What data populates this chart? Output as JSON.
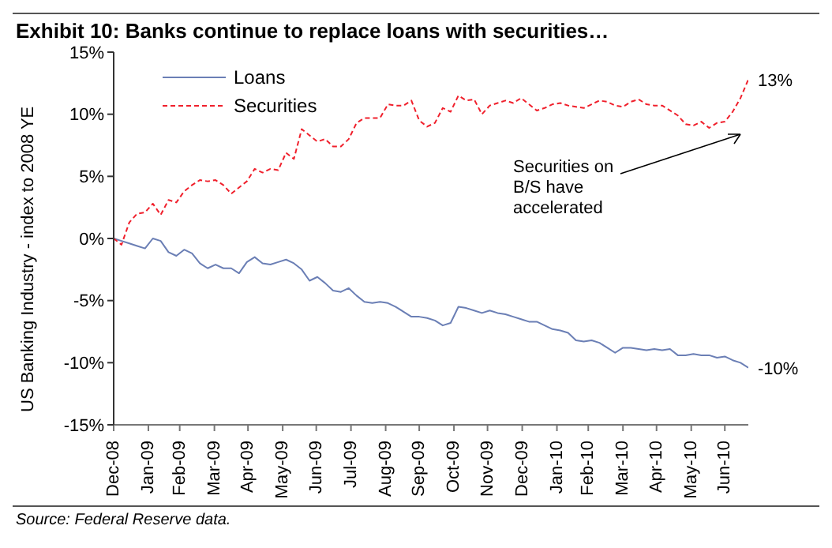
{
  "chart_data": {
    "type": "line",
    "title": "Exhibit 10: Banks continue to replace loans with securities…",
    "ylabel": "US Banking Industry - index to 2008 YE",
    "x": [
      "2008-12-31",
      "2009-01-07",
      "2009-01-14",
      "2009-01-21",
      "2009-01-28",
      "2009-02-04",
      "2009-02-11",
      "2009-02-18",
      "2009-02-25",
      "2009-03-04",
      "2009-03-11",
      "2009-03-18",
      "2009-03-25",
      "2009-04-01",
      "2009-04-08",
      "2009-04-15",
      "2009-04-22",
      "2009-04-29",
      "2009-05-06",
      "2009-05-13",
      "2009-05-20",
      "2009-05-27",
      "2009-06-03",
      "2009-06-10",
      "2009-06-17",
      "2009-06-24",
      "2009-07-01",
      "2009-07-08",
      "2009-07-15",
      "2009-07-22",
      "2009-07-29",
      "2009-08-05",
      "2009-08-12",
      "2009-08-19",
      "2009-08-26",
      "2009-09-02",
      "2009-09-09",
      "2009-09-16",
      "2009-09-23",
      "2009-09-30",
      "2009-10-07",
      "2009-10-14",
      "2009-10-21",
      "2009-10-28",
      "2009-11-04",
      "2009-11-11",
      "2009-11-18",
      "2009-11-25",
      "2009-12-02",
      "2009-12-09",
      "2009-12-16",
      "2009-12-23",
      "2009-12-30",
      "2010-01-06",
      "2010-01-13",
      "2010-01-20",
      "2010-01-27",
      "2010-02-03",
      "2010-02-10",
      "2010-02-17",
      "2010-02-24",
      "2010-03-03",
      "2010-03-10",
      "2010-03-17",
      "2010-03-24",
      "2010-03-31",
      "2010-04-07",
      "2010-04-14",
      "2010-04-21",
      "2010-04-28",
      "2010-05-05",
      "2010-05-12",
      "2010-05-19",
      "2010-05-26",
      "2010-06-02",
      "2010-06-09",
      "2010-06-16",
      "2010-06-23",
      "2010-06-30",
      "2010-07-07",
      "2010-07-14",
      "2010-07-21"
    ],
    "series": [
      {
        "name": "Loans",
        "color": "#6b7fb5",
        "line_style": "solid",
        "values": [
          0,
          -0.2,
          -0.4,
          -0.6,
          -0.8,
          0,
          -0.2,
          -1.1,
          -1.4,
          -0.9,
          -1.2,
          -2.0,
          -2.4,
          -2.1,
          -2.4,
          -2.4,
          -2.8,
          -1.9,
          -1.5,
          -2.0,
          -2.1,
          -1.9,
          -1.7,
          -2.0,
          -2.5,
          -3.4,
          -3.1,
          -3.6,
          -4.2,
          -4.3,
          -4.0,
          -4.6,
          -5.1,
          -5.2,
          -5.1,
          -5.2,
          -5.5,
          -5.9,
          -6.3,
          -6.3,
          -6.4,
          -6.6,
          -7.0,
          -6.8,
          -5.5,
          -5.6,
          -5.8,
          -6.0,
          -5.8,
          -6.0,
          -6.1,
          -6.3,
          -6.5,
          -6.7,
          -6.7,
          -7.0,
          -7.3,
          -7.4,
          -7.6,
          -8.2,
          -8.3,
          -8.2,
          -8.4,
          -8.8,
          -9.2,
          -8.8,
          -8.8,
          -8.9,
          -9.0,
          -8.9,
          -9.0,
          -8.9,
          -9.4,
          -9.4,
          -9.3,
          -9.4,
          -9.4,
          -9.6,
          -9.5,
          -9.8,
          -10.0,
          -10.4
        ]
      },
      {
        "name": "Securities",
        "color": "#f0202c",
        "line_style": "dashed",
        "values": [
          0,
          -0.5,
          1.3,
          2.0,
          2.1,
          2.8,
          1.9,
          3.1,
          2.9,
          3.8,
          4.3,
          4.7,
          4.6,
          4.7,
          4.3,
          3.6,
          4.1,
          4.6,
          5.6,
          5.3,
          5.6,
          5.5,
          6.9,
          6.4,
          8.8,
          8.3,
          7.8,
          8.0,
          7.4,
          7.4,
          8.0,
          9.3,
          9.7,
          9.7,
          9.7,
          10.8,
          10.7,
          10.7,
          11.1,
          9.5,
          9.0,
          9.3,
          10.5,
          10.2,
          11.5,
          11.1,
          11.2,
          10.0,
          10.7,
          10.9,
          11.1,
          10.9,
          11.3,
          10.8,
          10.3,
          10.5,
          10.8,
          10.9,
          10.7,
          10.6,
          10.5,
          10.8,
          11.1,
          11.0,
          10.7,
          10.6,
          11.0,
          11.2,
          10.8,
          10.7,
          10.7,
          10.3,
          9.9,
          9.2,
          9.1,
          9.4,
          8.9,
          9.3,
          9.4,
          10.2,
          11.3,
          12.8
        ]
      }
    ],
    "xlim": [
      "2008-12-31",
      "2010-07-21"
    ],
    "xticks": [
      {
        "value": "2008-12-31",
        "label": "Dec-08"
      },
      {
        "value": "2009-01-31",
        "label": "Jan-09"
      },
      {
        "value": "2009-02-28",
        "label": "Feb-09"
      },
      {
        "value": "2009-03-31",
        "label": "Mar-09"
      },
      {
        "value": "2009-04-30",
        "label": "Apr-09"
      },
      {
        "value": "2009-05-31",
        "label": "May-09"
      },
      {
        "value": "2009-06-30",
        "label": "Jun-09"
      },
      {
        "value": "2009-07-31",
        "label": "Jul-09"
      },
      {
        "value": "2009-08-31",
        "label": "Aug-09"
      },
      {
        "value": "2009-09-30",
        "label": "Sep-09"
      },
      {
        "value": "2009-10-31",
        "label": "Oct-09"
      },
      {
        "value": "2009-11-30",
        "label": "Nov-09"
      },
      {
        "value": "2009-12-31",
        "label": "Dec-09"
      },
      {
        "value": "2010-01-31",
        "label": "Jan-10"
      },
      {
        "value": "2010-02-28",
        "label": "Feb-10"
      },
      {
        "value": "2010-03-31",
        "label": "Mar-10"
      },
      {
        "value": "2010-04-30",
        "label": "Apr-10"
      },
      {
        "value": "2010-05-31",
        "label": "May-10"
      },
      {
        "value": "2010-06-30",
        "label": "Jun-10"
      }
    ],
    "ylim": [
      -15,
      15
    ],
    "yticks": [
      {
        "value": -15,
        "label": "-15%"
      },
      {
        "value": -10,
        "label": "-10%"
      },
      {
        "value": -5,
        "label": "-5%"
      },
      {
        "value": 0,
        "label": "0%"
      },
      {
        "value": 5,
        "label": "5%"
      },
      {
        "value": 10,
        "label": "10%"
      },
      {
        "value": 15,
        "label": "15%"
      }
    ],
    "grid": false,
    "legend": "top left",
    "marker": "none",
    "annotations": [
      {
        "text": "13%",
        "x": "2010-07-21",
        "y": 12.8
      },
      {
        "text": "-10%",
        "x": "2010-07-21",
        "y": -10.4
      },
      "Securities on B/S have accelerated",
      "Source: Federal Reserve data."
    ]
  }
}
